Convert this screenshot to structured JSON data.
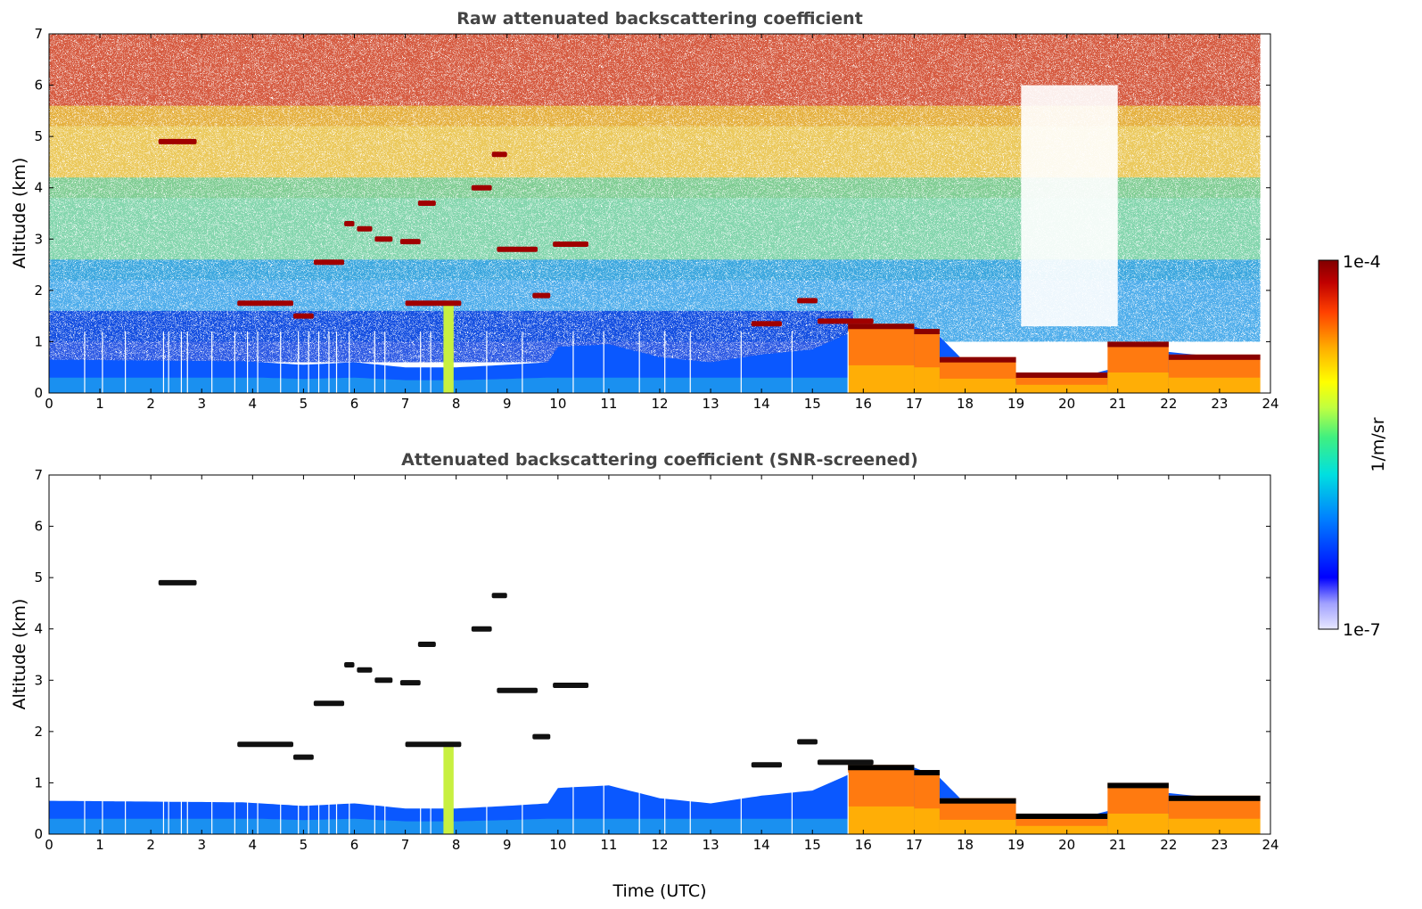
{
  "chart_data": [
    {
      "type": "heatmap",
      "title": "Raw attenuated backscattering coefficient",
      "xlabel": "",
      "ylabel": "Altitude (km)",
      "xlim": [
        0,
        24
      ],
      "ylim": [
        0,
        7
      ],
      "x_ticks": [
        "0",
        "1",
        "2",
        "3",
        "4",
        "5",
        "6",
        "7",
        "8",
        "9",
        "10",
        "11",
        "12",
        "13",
        "14",
        "15",
        "16",
        "17",
        "18",
        "19",
        "20",
        "21",
        "22",
        "23",
        "24"
      ],
      "y_ticks": [
        "0",
        "1",
        "2",
        "3",
        "4",
        "5",
        "6",
        "7"
      ],
      "grid": false,
      "screened": false
    },
    {
      "type": "heatmap",
      "title": "Attenuated backscattering coefficient (SNR-screened)",
      "xlabel": "Time (UTC)",
      "ylabel": "Altitude (km)",
      "xlim": [
        0,
        24
      ],
      "ylim": [
        0,
        7
      ],
      "x_ticks": [
        "0",
        "1",
        "2",
        "3",
        "4",
        "5",
        "6",
        "7",
        "8",
        "9",
        "10",
        "11",
        "12",
        "13",
        "14",
        "15",
        "16",
        "17",
        "18",
        "19",
        "20",
        "21",
        "22",
        "23",
        "24"
      ],
      "y_ticks": [
        "0",
        "1",
        "2",
        "3",
        "4",
        "5",
        "6",
        "7"
      ],
      "grid": false,
      "screened": true
    }
  ],
  "colorbar": {
    "label": "1/m/sr",
    "min_label": "1e-7",
    "max_label": "1e-4",
    "scale": "log",
    "colormap": [
      "#e8e8ff",
      "#a0a0ff",
      "#0000ff",
      "#0080ff",
      "#00e0e0",
      "#40f080",
      "#c0ff40",
      "#ffff00",
      "#ffb000",
      "#ff4000",
      "#c00000",
      "#800000"
    ]
  },
  "features": {
    "boundary_layer_top_km": [
      [
        0,
        0.65
      ],
      [
        3.8,
        0.62
      ],
      [
        5,
        0.55
      ],
      [
        6,
        0.6
      ],
      [
        7,
        0.5
      ],
      [
        8,
        0.5
      ],
      [
        9,
        0.55
      ],
      [
        9.8,
        0.6
      ],
      [
        10,
        0.9
      ],
      [
        11,
        0.95
      ],
      [
        12,
        0.7
      ],
      [
        13,
        0.6
      ],
      [
        14,
        0.75
      ],
      [
        15,
        0.85
      ],
      [
        15.8,
        1.2
      ],
      [
        16.5,
        1.3
      ],
      [
        17,
        1.3
      ],
      [
        17.5,
        1.1
      ],
      [
        18,
        0.6
      ],
      [
        19,
        0.35
      ],
      [
        20,
        0.25
      ],
      [
        21,
        0.5
      ],
      [
        22,
        0.8
      ],
      [
        23,
        0.7
      ],
      [
        23.8,
        0.75
      ]
    ],
    "cloud_segments": [
      {
        "t0": 2.15,
        "t1": 2.9,
        "alt": 4.9
      },
      {
        "t0": 3.7,
        "t1": 4.8,
        "alt": 1.75
      },
      {
        "t0": 4.8,
        "t1": 5.2,
        "alt": 1.5
      },
      {
        "t0": 5.2,
        "t1": 5.8,
        "alt": 2.55
      },
      {
        "t0": 5.8,
        "t1": 6.0,
        "alt": 3.3
      },
      {
        "t0": 6.05,
        "t1": 6.35,
        "alt": 3.2
      },
      {
        "t0": 6.4,
        "t1": 6.75,
        "alt": 3.0
      },
      {
        "t0": 6.9,
        "t1": 7.3,
        "alt": 2.95
      },
      {
        "t0": 7.25,
        "t1": 7.6,
        "alt": 3.7
      },
      {
        "t0": 7.0,
        "t1": 8.1,
        "alt": 1.75
      },
      {
        "t0": 8.3,
        "t1": 8.7,
        "alt": 4.0
      },
      {
        "t0": 8.7,
        "t1": 9.0,
        "alt": 4.65
      },
      {
        "t0": 8.8,
        "t1": 9.6,
        "alt": 2.8
      },
      {
        "t0": 9.5,
        "t1": 9.85,
        "alt": 1.9
      },
      {
        "t0": 9.9,
        "t1": 10.6,
        "alt": 2.9
      },
      {
        "t0": 13.8,
        "t1": 14.4,
        "alt": 1.35
      },
      {
        "t0": 14.7,
        "t1": 15.1,
        "alt": 1.8
      },
      {
        "t0": 15.1,
        "t1": 16.2,
        "alt": 1.4
      }
    ],
    "high_backscatter_bands": [
      {
        "t0": 15.7,
        "t1": 17.0,
        "alt_top": 1.35
      },
      {
        "t0": 17.0,
        "t1": 17.5,
        "alt_top": 1.25
      },
      {
        "t0": 17.5,
        "t1": 19.0,
        "alt_top": 0.7
      },
      {
        "t0": 19.0,
        "t1": 20.8,
        "alt_top": 0.4
      },
      {
        "t0": 20.8,
        "t1": 22.0,
        "alt_top": 1.0
      },
      {
        "t0": 22.0,
        "t1": 23.8,
        "alt_top": 0.75
      }
    ],
    "data_gaps_utc": [
      0.7,
      1.05,
      1.5,
      2.25,
      2.35,
      2.6,
      2.72,
      3.2,
      3.65,
      3.9,
      4.1,
      4.55,
      4.9,
      5.1,
      5.3,
      5.5,
      5.65,
      5.9,
      6.4,
      6.6,
      7.3,
      7.5,
      8.6,
      9.3,
      10.3,
      10.9,
      11.6,
      12.1,
      12.6,
      13.6,
      14.6,
      15.7
    ]
  }
}
